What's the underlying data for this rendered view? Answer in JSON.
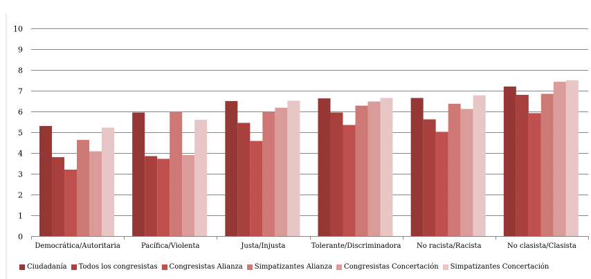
{
  "chart_data": {
    "type": "bar",
    "title": "",
    "xlabel": "",
    "ylabel": "",
    "ylim": [
      0,
      10
    ],
    "yticks": [
      0,
      1,
      2,
      3,
      4,
      5,
      6,
      7,
      8,
      9,
      10
    ],
    "grid": true,
    "legend_position": "bottom",
    "categories": [
      "Democrática/Autoritaria",
      "Pacífica/Violenta",
      "Justa/Injusta",
      "Tolerante/Discriminadora",
      "No racista/Racista",
      "No clasista/Clasista"
    ],
    "series": [
      {
        "name": "Ciudadanía",
        "color": "#953735",
        "values": [
          5.3,
          5.95,
          6.5,
          6.63,
          6.65,
          7.2
        ]
      },
      {
        "name": "Todos los congresistas",
        "color": "#A8403D",
        "values": [
          3.8,
          3.85,
          5.45,
          5.95,
          5.62,
          6.8
        ]
      },
      {
        "name": "Congresistas Alianza",
        "color": "#C0504D",
        "values": [
          3.2,
          3.72,
          4.58,
          5.35,
          5.02,
          5.92
        ]
      },
      {
        "name": "Simpatizantes Alianza",
        "color": "#CF7977",
        "values": [
          4.63,
          6.0,
          6.0,
          6.28,
          6.37,
          6.85
        ]
      },
      {
        "name": "Congresistas Concertación",
        "color": "#DA9C9B",
        "values": [
          4.08,
          3.9,
          6.18,
          6.48,
          6.12,
          7.43
        ]
      },
      {
        "name": "Simpatizantes Concertación",
        "color": "#E8C6C5",
        "values": [
          5.22,
          5.6,
          6.52,
          6.65,
          6.78,
          7.5
        ]
      }
    ]
  }
}
